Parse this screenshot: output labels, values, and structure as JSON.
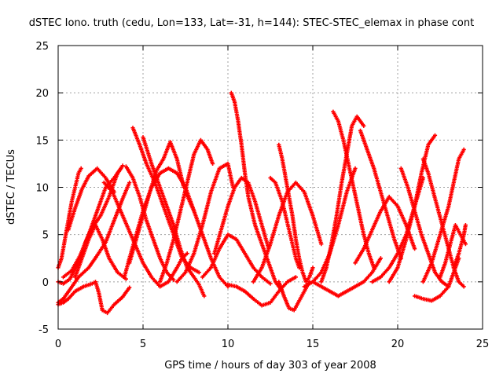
{
  "chart_data": {
    "type": "scatter",
    "title": "dSTEC Iono. truth (cedu, Lon=133, Lat=-31, h=144): STEC-STEC_elemax in phase cont",
    "xlabel": "GPS time / hours of day 303 of year 2008",
    "ylabel": "dSTEC  / TECUs",
    "xlim": [
      0,
      25
    ],
    "ylim": [
      -5,
      25
    ],
    "xticks": [
      0,
      5,
      10,
      15,
      20,
      25
    ],
    "xtick_labels": [
      "0",
      "5",
      "10",
      "15",
      "20",
      "25"
    ],
    "yticks": [
      -5,
      0,
      5,
      10,
      15,
      20,
      25
    ],
    "ytick_labels": [
      "-5",
      "0",
      "5",
      "10",
      "15",
      "20",
      "25"
    ],
    "grid": true,
    "legend": "none",
    "marker": "plus",
    "color": "#ff0000",
    "series": [
      {
        "x": [
          0.0,
          0.2,
          0.4,
          0.6,
          0.8,
          1.0,
          1.2,
          1.35
        ],
        "y": [
          1.5,
          2.5,
          4.5,
          6.5,
          8.5,
          10.0,
          11.5,
          12.0
        ]
      },
      {
        "x": [
          0.0,
          0.3,
          0.7,
          1.2,
          1.8,
          2.3,
          2.8,
          3.3,
          3.8,
          4.2
        ],
        "y": [
          -2.2,
          -1.8,
          -0.8,
          0.5,
          1.5,
          2.8,
          4.2,
          6.5,
          8.8,
          10.5
        ]
      },
      {
        "x": [
          0.0,
          0.3,
          0.6,
          1.0,
          1.5,
          2.0,
          2.2,
          2.4,
          2.6,
          2.9,
          3.3,
          3.8,
          4.2
        ],
        "y": [
          -2.4,
          -2.2,
          -1.8,
          -1.0,
          -0.5,
          -0.2,
          0.0,
          -1.2,
          -3.0,
          -3.3,
          -2.4,
          -1.6,
          -0.6
        ]
      },
      {
        "x": [
          0.0,
          0.3,
          0.7,
          1.0,
          1.2,
          1.4,
          1.6,
          2.0,
          2.5,
          3.0,
          3.5,
          3.8
        ],
        "y": [
          0.0,
          -0.2,
          0.3,
          1.4,
          2.2,
          3.1,
          4.2,
          5.7,
          7.0,
          9.0,
          11.5,
          12.3
        ]
      },
      {
        "x": [
          0.3,
          0.8,
          1.3,
          1.8,
          2.3,
          2.8,
          3.3,
          3.7
        ],
        "y": [
          0.5,
          1.2,
          2.8,
          5.0,
          7.5,
          10.0,
          11.0,
          12.0
        ]
      },
      {
        "x": [
          0.6,
          1.0,
          1.4,
          1.8,
          2.3,
          2.8,
          3.3
        ],
        "y": [
          5.5,
          7.8,
          9.8,
          11.2,
          12.0,
          11.0,
          9.5
        ]
      },
      {
        "x": [
          1.0,
          1.4,
          1.8,
          2.2,
          2.6,
          3.0,
          3.5,
          4.0
        ],
        "y": [
          0.5,
          2.5,
          4.5,
          6.0,
          4.5,
          2.5,
          1.0,
          0.3
        ]
      },
      {
        "x": [
          2.7,
          3.2,
          3.8,
          4.4,
          5.0,
          5.5,
          6.0,
          6.5,
          7.0,
          7.3,
          7.6
        ],
        "y": [
          10.5,
          9.5,
          7.0,
          4.5,
          2.0,
          0.5,
          -0.5,
          0.0,
          1.5,
          2.5,
          3.0
        ]
      },
      {
        "x": [
          4.4,
          4.8,
          5.2,
          5.7,
          6.2,
          6.8,
          7.3,
          7.8,
          8.3
        ],
        "y": [
          16.3,
          14.5,
          12.5,
          10.5,
          8.0,
          5.0,
          2.5,
          1.5,
          1.0
        ]
      },
      {
        "x": [
          3.9,
          4.2,
          4.6,
          5.0,
          5.5,
          6.0,
          6.5,
          7.0,
          7.5,
          8.0
        ],
        "y": [
          0.5,
          2.5,
          5.0,
          7.5,
          10.0,
          11.5,
          12.0,
          11.5,
          10.0,
          7.5
        ]
      },
      {
        "x": [
          4.0,
          4.4,
          4.8,
          5.2,
          5.6,
          6.0,
          6.4,
          6.8
        ],
        "y": [
          12.2,
          11.0,
          9.0,
          6.5,
          4.5,
          2.5,
          1.0,
          0.2
        ]
      },
      {
        "x": [
          5.0,
          5.5,
          6.0,
          6.4,
          6.8,
          7.2,
          7.6,
          8.0,
          8.3,
          8.6
        ],
        "y": [
          15.3,
          12.5,
          10.0,
          8.0,
          6.0,
          3.5,
          1.5,
          0.5,
          -0.3,
          -1.5
        ]
      },
      {
        "x": [
          4.2,
          4.6,
          5.0,
          5.4,
          5.8,
          6.2,
          6.6,
          7.0,
          7.4
        ],
        "y": [
          2.0,
          4.5,
          7.0,
          9.5,
          11.8,
          13.0,
          14.8,
          13.0,
          10.0
        ]
      },
      {
        "x": [
          6.0,
          6.4,
          6.8,
          7.2,
          7.6,
          8.0,
          8.4,
          8.8,
          9.1
        ],
        "y": [
          0.0,
          2.0,
          4.5,
          7.5,
          10.5,
          13.5,
          15.0,
          14.0,
          12.5
        ]
      },
      {
        "x": [
          7.5,
          8.0,
          8.5,
          9.0,
          9.5,
          10.0
        ],
        "y": [
          9.5,
          7.5,
          5.0,
          2.5,
          0.5,
          -0.5
        ]
      },
      {
        "x": [
          7.0,
          7.5,
          8.0,
          8.5,
          9.0,
          9.5,
          10.0,
          10.3
        ],
        "y": [
          0.0,
          1.0,
          3.0,
          6.0,
          9.5,
          12.0,
          12.5,
          10.0
        ]
      },
      {
        "x": [
          10.2,
          10.4,
          10.6,
          10.8,
          11.0,
          11.2,
          11.6,
          12.0,
          12.4,
          12.8,
          13.2
        ],
        "y": [
          20.0,
          19.0,
          17.0,
          14.5,
          11.5,
          9.0,
          6.0,
          4.0,
          2.0,
          0.0,
          -1.0
        ]
      },
      {
        "x": [
          8.5,
          9.0,
          9.5,
          10.0,
          10.5,
          11.0,
          11.5,
          12.0,
          12.5
        ],
        "y": [
          0.5,
          1.5,
          3.5,
          5.0,
          4.5,
          3.0,
          1.5,
          0.5,
          -0.2
        ]
      },
      {
        "x": [
          9.2,
          9.6,
          10.0,
          10.4,
          10.8,
          11.2,
          11.6,
          12.0,
          12.4
        ],
        "y": [
          3.0,
          5.5,
          8.0,
          10.0,
          11.0,
          10.5,
          8.5,
          6.0,
          3.5
        ]
      },
      {
        "x": [
          10.0,
          10.5,
          11.0,
          11.5,
          12.0,
          12.5,
          13.0,
          13.5,
          14.0
        ],
        "y": [
          -0.3,
          -0.5,
          -1.0,
          -1.8,
          -2.5,
          -2.2,
          -1.0,
          0.0,
          0.5
        ]
      },
      {
        "x": [
          12.5,
          12.8,
          13.0,
          13.2,
          13.4,
          13.6,
          13.8,
          14.0,
          14.2
        ],
        "y": [
          11.0,
          10.5,
          9.5,
          8.5,
          7.0,
          5.5,
          4.0,
          2.5,
          1.5
        ]
      },
      {
        "x": [
          13.0,
          13.2,
          13.4,
          13.6,
          13.8,
          14.0,
          14.2,
          14.4,
          14.6,
          14.8,
          15.0
        ],
        "y": [
          14.5,
          13.0,
          11.0,
          9.0,
          7.0,
          4.5,
          2.5,
          1.0,
          0.0,
          0.5,
          1.5
        ]
      },
      {
        "x": [
          11.5,
          12.0,
          12.5,
          13.0,
          13.5,
          14.0,
          14.5,
          15.0,
          15.5
        ],
        "y": [
          0.0,
          1.5,
          4.0,
          7.0,
          9.5,
          10.5,
          9.5,
          7.0,
          4.0
        ]
      },
      {
        "x": [
          13.0,
          13.3,
          13.6,
          13.9,
          14.2,
          14.5,
          14.8
        ],
        "y": [
          0.0,
          -1.5,
          -2.8,
          -3.0,
          -2.0,
          -1.0,
          0.0
        ]
      },
      {
        "x": [
          14.5,
          15.0,
          15.5,
          16.0,
          16.5,
          17.0,
          17.5
        ],
        "y": [
          -0.5,
          0.0,
          1.0,
          3.0,
          6.0,
          9.5,
          12.0
        ]
      },
      {
        "x": [
          15.5,
          15.8,
          16.1,
          16.4,
          16.7,
          17.0,
          17.3,
          17.6,
          18.0
        ],
        "y": [
          0.0,
          1.5,
          4.0,
          7.0,
          10.5,
          13.5,
          16.5,
          17.5,
          16.5
        ]
      },
      {
        "x": [
          16.2,
          16.5,
          16.8,
          17.1,
          17.4,
          17.7,
          18.0,
          18.3,
          18.6
        ],
        "y": [
          18.0,
          17.0,
          15.0,
          12.5,
          10.0,
          7.5,
          5.0,
          3.0,
          1.5
        ]
      },
      {
        "x": [
          15.0,
          15.5,
          16.0,
          16.5,
          17.0,
          17.5,
          18.0,
          18.5,
          19.0
        ],
        "y": [
          0.0,
          -0.5,
          -1.0,
          -1.5,
          -1.0,
          -0.5,
          0.0,
          1.0,
          2.5
        ]
      },
      {
        "x": [
          17.8,
          18.2,
          18.6,
          19.0,
          19.4,
          19.8,
          20.2
        ],
        "y": [
          16.0,
          14.0,
          12.0,
          9.5,
          7.0,
          4.5,
          2.5
        ]
      },
      {
        "x": [
          17.5,
          18.0,
          18.5,
          19.0,
          19.5,
          20.0,
          20.5,
          21.0
        ],
        "y": [
          2.0,
          3.5,
          5.5,
          7.5,
          9.0,
          8.0,
          6.0,
          3.5
        ]
      },
      {
        "x": [
          18.5,
          19.0,
          19.5,
          20.0,
          20.5,
          21.0,
          21.5
        ],
        "y": [
          0.0,
          0.5,
          1.5,
          3.0,
          5.0,
          8.0,
          11.0
        ]
      },
      {
        "x": [
          19.5,
          20.0,
          20.5,
          21.0,
          21.4,
          21.8,
          22.2
        ],
        "y": [
          0.0,
          1.5,
          4.5,
          8.0,
          11.5,
          14.5,
          15.5
        ]
      },
      {
        "x": [
          20.2,
          20.6,
          21.0,
          21.4,
          21.8,
          22.2,
          22.6,
          23.0
        ],
        "y": [
          12.0,
          10.0,
          7.5,
          5.0,
          3.0,
          1.0,
          0.0,
          -0.5
        ]
      },
      {
        "x": [
          21.5,
          21.8,
          22.1,
          22.4,
          22.7,
          23.0,
          23.3,
          23.6,
          23.9
        ],
        "y": [
          13.0,
          11.5,
          9.5,
          7.5,
          5.5,
          3.5,
          1.5,
          0.0,
          -0.5
        ]
      },
      {
        "x": [
          21.0,
          21.5,
          22.0,
          22.5,
          23.0,
          23.3,
          23.6
        ],
        "y": [
          -1.5,
          -1.8,
          -2.0,
          -1.5,
          -0.5,
          1.0,
          2.5
        ]
      },
      {
        "x": [
          21.5,
          22.0,
          22.5,
          23.0,
          23.3,
          23.6,
          23.9
        ],
        "y": [
          0.0,
          2.0,
          5.0,
          8.0,
          10.5,
          13.0,
          14.0
        ]
      },
      {
        "x": [
          22.5,
          22.8,
          23.1,
          23.4,
          23.7,
          24.0
        ],
        "y": [
          0.5,
          2.0,
          4.0,
          6.0,
          5.0,
          4.0
        ]
      },
      {
        "x": [
          23.3,
          23.6,
          23.9,
          24.0
        ],
        "y": [
          1.5,
          3.0,
          5.0,
          6.0
        ]
      }
    ]
  }
}
